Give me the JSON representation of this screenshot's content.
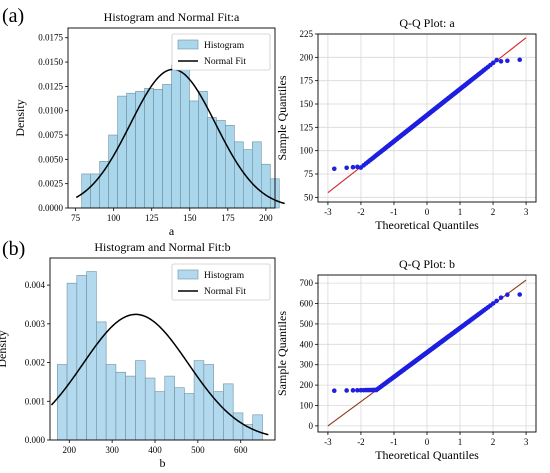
{
  "panel_labels": [
    "(a)",
    "(b)"
  ],
  "chart_data": [
    {
      "type": "bar",
      "title": "Histogram and Normal Fit:a",
      "xlabel": "a",
      "ylabel": "Density",
      "xlim": [
        70,
        206
      ],
      "ylim": [
        0,
        0.0185
      ],
      "xticks": [
        75,
        100,
        125,
        150,
        175,
        200
      ],
      "yticks": [
        0.0,
        0.0025,
        0.005,
        0.0075,
        0.01,
        0.0125,
        0.015,
        0.0175
      ],
      "ytick_labels": [
        "0.0000",
        "0.0025",
        "0.0050",
        "0.0075",
        "0.0100",
        "0.0125",
        "0.0150",
        "0.0175"
      ],
      "bin_start": 79,
      "bin_width": 5.9,
      "values": [
        0.0035,
        0.0035,
        0.0048,
        0.0075,
        0.0115,
        0.0118,
        0.012,
        0.0123,
        0.0122,
        0.0127,
        0.0147,
        0.0145,
        0.011,
        0.012,
        0.0093,
        0.009,
        0.0085,
        0.0068,
        0.006,
        0.0068,
        0.0045,
        0.003
      ],
      "normal_fit": {
        "mean": 139,
        "std": 28
      },
      "bar_color": "#a9d6ea",
      "line_color": "#000000",
      "legend": {
        "entries": [
          "Histogram",
          "Normal Fit"
        ],
        "placement": "top-right"
      },
      "grid": false
    },
    {
      "type": "scatter",
      "title": "Q-Q Plot: a",
      "xlabel": "Theoretical Quantiles",
      "ylabel": "Sample Quantiles",
      "xlim": [
        -3.3,
        3.3
      ],
      "ylim": [
        45,
        225
      ],
      "xticks": [
        -3,
        -2,
        -1,
        0,
        1,
        2,
        3
      ],
      "yticks": [
        50,
        75,
        100,
        125,
        150,
        175,
        200,
        225
      ],
      "reference_line": {
        "x": [
          -3,
          3
        ],
        "y": [
          55,
          221
        ]
      },
      "sample_mean": 138,
      "sample_std": 28,
      "sample_min": 80,
      "sample_max": 198,
      "n_points": 200,
      "point_color": "#1f1fe0",
      "line_color": "#d62728",
      "grid": true
    },
    {
      "type": "bar",
      "title": "Histogram and Normal Fit:b",
      "xlabel": "b",
      "ylabel": "Density",
      "xlim": [
        155,
        680
      ],
      "ylim": [
        0,
        0.0047
      ],
      "xticks": [
        200,
        300,
        400,
        500,
        600
      ],
      "yticks": [
        0.0,
        0.001,
        0.002,
        0.003,
        0.004
      ],
      "ytick_labels": [
        "0.000",
        "0.001",
        "0.002",
        "0.003",
        "0.004"
      ],
      "bin_start": 172,
      "bin_width": 22.8,
      "values": [
        0.00195,
        0.00405,
        0.00425,
        0.00435,
        0.00305,
        0.00195,
        0.00175,
        0.00165,
        0.00205,
        0.0016,
        0.00125,
        0.00165,
        0.00135,
        0.0012,
        0.00205,
        0.00195,
        0.00125,
        0.00145,
        0.0007,
        0.0004,
        0.00065
      ],
      "normal_fit": {
        "mean": 355,
        "std": 123
      },
      "bar_color": "#b3d9ee",
      "line_color": "#000000",
      "legend": {
        "entries": [
          "Histogram",
          "Normal Fit"
        ],
        "placement": "top-right"
      },
      "grid": false
    },
    {
      "type": "scatter",
      "title": "Q-Q Plot: b",
      "xlabel": "Theoretical Quantiles",
      "ylabel": "Sample Quantiles",
      "xlim": [
        -3.3,
        3.3
      ],
      "ylim": [
        -30,
        740
      ],
      "xticks": [
        -3,
        -2,
        -1,
        0,
        1,
        2,
        3
      ],
      "yticks": [
        0,
        100,
        200,
        300,
        400,
        500,
        600,
        700
      ],
      "reference_line": {
        "x": [
          -3,
          3
        ],
        "y": [
          0,
          715
        ]
      },
      "sample_mean": 360,
      "sample_std": 120,
      "sample_min": 172,
      "sample_max": 645,
      "n_points": 200,
      "point_color": "#1f1fe0",
      "line_color": "#8b3a1a",
      "grid": true
    }
  ]
}
